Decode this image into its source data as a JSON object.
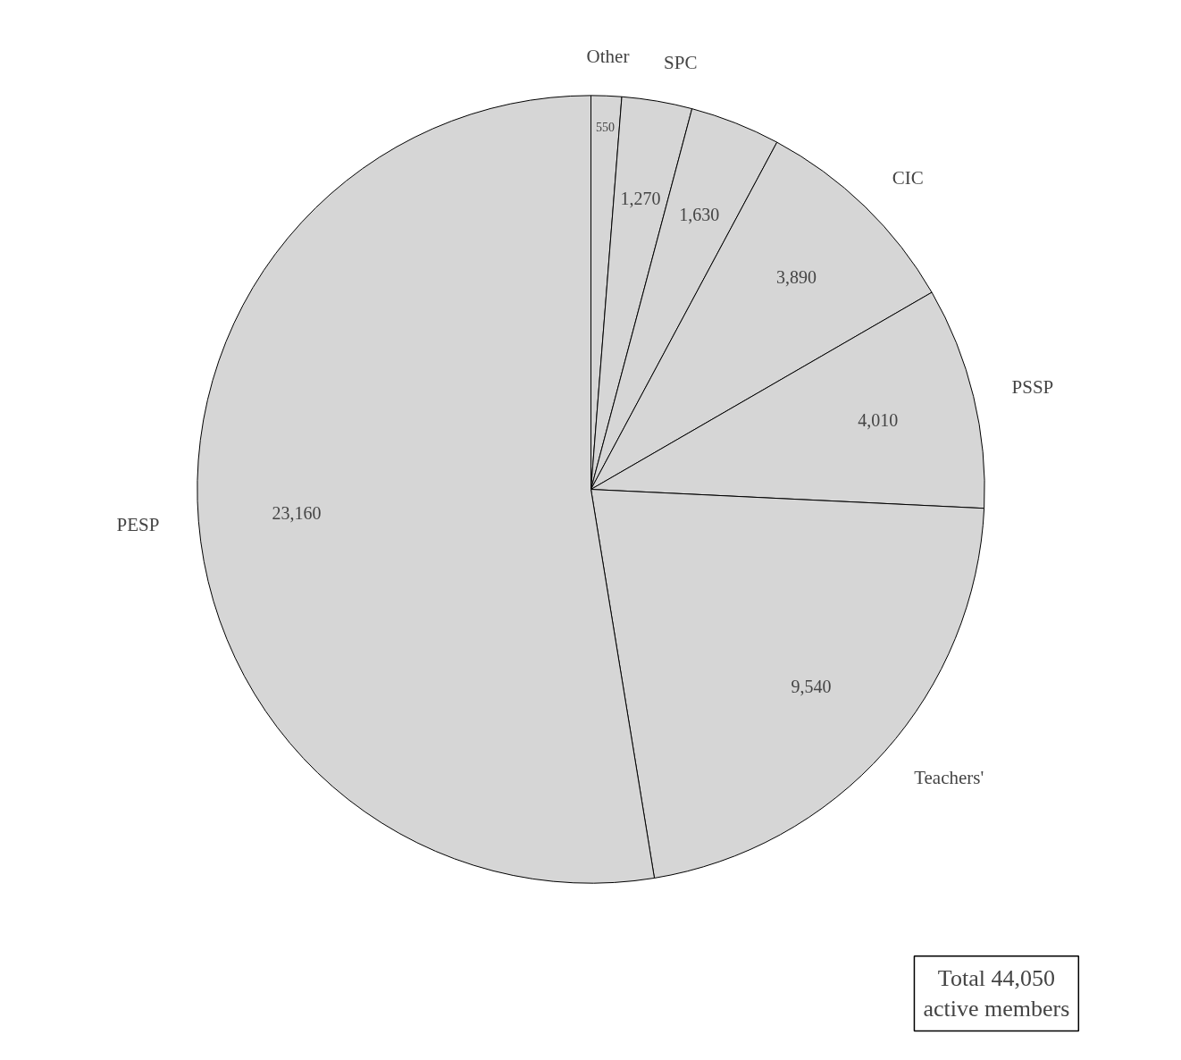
{
  "chart_data": {
    "type": "pie",
    "categories": [
      "Other",
      "SPC",
      null,
      "CIC",
      "PSSP",
      "Teachers'",
      "PESP"
    ],
    "values": [
      550,
      1270,
      1630,
      3890,
      4010,
      9540,
      23160
    ],
    "colors": [
      "#d6d6d6",
      "#d6d6d6",
      "#d6d6d6",
      "#d6d6d6",
      "#d6d6d6",
      "#d6d6d6",
      "#d6d6d6"
    ],
    "value_labels": [
      "550",
      "1,270",
      "1,630",
      "3,890",
      "4,010",
      "9,540",
      "23,160"
    ],
    "annotations": [
      "Total 44,050\nactive members"
    ]
  }
}
